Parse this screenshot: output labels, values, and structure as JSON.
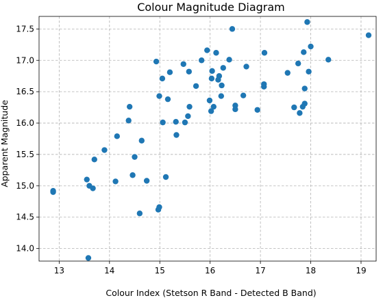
{
  "chart_data": {
    "type": "scatter",
    "title": "Colour Magnitude Diagram",
    "xlabel": "Colour Index (Stetson R Band - Detected B Band)",
    "ylabel": "Apparent Magnitude",
    "xlim": [
      12.6,
      19.3
    ],
    "ylim": [
      13.8,
      17.7
    ],
    "xticks": [
      13,
      14,
      15,
      16,
      17,
      18,
      19
    ],
    "xtick_labels": [
      "13",
      "14",
      "15",
      "16",
      "17",
      "18",
      "19"
    ],
    "yticks": [
      14.0,
      14.5,
      15.0,
      15.5,
      16.0,
      16.5,
      17.0,
      17.5
    ],
    "ytick_labels": [
      "14.0",
      "14.5",
      "15.0",
      "15.5",
      "16.0",
      "16.5",
      "17.0",
      "17.5"
    ],
    "grid": true,
    "grid_style": "dashed",
    "marker_color": "#1f77b4",
    "points": [
      [
        12.88,
        14.92
      ],
      [
        12.88,
        14.9
      ],
      [
        13.55,
        15.1
      ],
      [
        13.6,
        15.0
      ],
      [
        13.67,
        14.96
      ],
      [
        13.7,
        15.42
      ],
      [
        13.58,
        13.85
      ],
      [
        13.9,
        15.57
      ],
      [
        14.12,
        15.07
      ],
      [
        14.15,
        15.79
      ],
      [
        14.38,
        16.04
      ],
      [
        14.4,
        16.26
      ],
      [
        14.46,
        15.17
      ],
      [
        14.5,
        15.46
      ],
      [
        14.6,
        14.56
      ],
      [
        14.64,
        15.72
      ],
      [
        14.74,
        15.08
      ],
      [
        14.93,
        16.98
      ],
      [
        14.97,
        14.62
      ],
      [
        14.99,
        14.66
      ],
      [
        14.99,
        16.43
      ],
      [
        15.05,
        16.71
      ],
      [
        15.06,
        16.01
      ],
      [
        15.12,
        15.14
      ],
      [
        15.16,
        16.38
      ],
      [
        15.2,
        16.81
      ],
      [
        15.32,
        16.02
      ],
      [
        15.33,
        15.81
      ],
      [
        15.47,
        16.94
      ],
      [
        15.5,
        16.01
      ],
      [
        15.56,
        16.11
      ],
      [
        15.58,
        16.82
      ],
      [
        15.59,
        16.26
      ],
      [
        15.72,
        16.59
      ],
      [
        15.83,
        17.0
      ],
      [
        15.94,
        17.16
      ],
      [
        15.99,
        16.36
      ],
      [
        16.02,
        16.19
      ],
      [
        16.03,
        16.71
      ],
      [
        16.04,
        16.83
      ],
      [
        16.07,
        16.26
      ],
      [
        16.12,
        17.12
      ],
      [
        16.16,
        16.69
      ],
      [
        16.18,
        16.75
      ],
      [
        16.22,
        16.43
      ],
      [
        16.23,
        16.6
      ],
      [
        16.26,
        16.88
      ],
      [
        16.38,
        17.01
      ],
      [
        16.44,
        17.5
      ],
      [
        16.5,
        16.28
      ],
      [
        16.5,
        16.22
      ],
      [
        16.66,
        16.44
      ],
      [
        16.72,
        16.9
      ],
      [
        16.94,
        16.21
      ],
      [
        17.07,
        16.58
      ],
      [
        17.07,
        16.62
      ],
      [
        17.08,
        17.12
      ],
      [
        17.54,
        16.8
      ],
      [
        17.67,
        16.25
      ],
      [
        17.75,
        16.95
      ],
      [
        17.78,
        16.16
      ],
      [
        17.84,
        16.26
      ],
      [
        17.86,
        17.13
      ],
      [
        17.88,
        16.31
      ],
      [
        17.88,
        16.55
      ],
      [
        17.93,
        17.61
      ],
      [
        17.96,
        16.82
      ],
      [
        18.0,
        17.22
      ],
      [
        18.35,
        17.01
      ],
      [
        19.15,
        17.4
      ]
    ]
  }
}
